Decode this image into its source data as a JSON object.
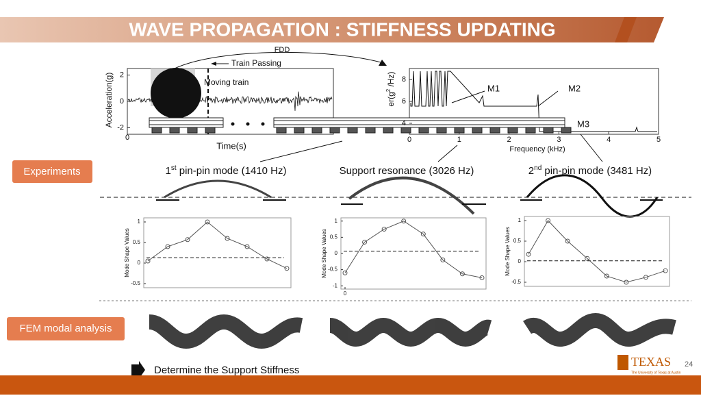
{
  "title": "WAVE PROPAGATION : STIFFNESS UPDATING",
  "fdd_label": "FDD",
  "signal_plot": {
    "ylabel": "Acceleration(g)",
    "xlabel": "Time(s)",
    "yticks": [
      -2,
      0,
      2
    ],
    "ylim": [
      -2.5,
      2.5
    ],
    "xticks": [
      0
    ],
    "train_passing": "Train Passing",
    "moving_train": "Moving train"
  },
  "spectrum_plot": {
    "ylabel_parts": [
      "er(g",
      "2",
      " /Hz)"
    ],
    "xlabel": "Frequency (kHz)",
    "yticks": [
      4,
      6,
      8
    ],
    "ylim": [
      3,
      9
    ],
    "xticks": [
      0,
      1,
      2,
      3,
      4,
      5
    ],
    "xlim": [
      0,
      5
    ],
    "peaks": [
      "M1",
      "M2",
      "M3"
    ]
  },
  "experiments_label": "Experiments",
  "fem_label": "FEM modal analysis",
  "modes": [
    {
      "ordinal": "1",
      "suffix": "st",
      "name": " pin-pin mode (1410 Hz)",
      "ylabel": "Mode Shape Values",
      "yticks": [
        -0.5,
        0,
        0.5,
        1
      ],
      "ylim": [
        -0.6,
        1.1
      ],
      "values": [
        0.05,
        0.4,
        0.57,
        1,
        0.6,
        0.4,
        0.1,
        -0.13
      ],
      "dashed_level": 0.13
    },
    {
      "ordinal": "",
      "suffix": "",
      "name": "Support resonance (3026 Hz)",
      "ylabel": "Mode Shape Values",
      "yticks": [
        -1,
        -0.5,
        0,
        0.5,
        1
      ],
      "ylim": [
        -1.1,
        1.1
      ],
      "xticks": [
        0
      ],
      "values": [
        -0.6,
        0.35,
        0.75,
        1,
        0.6,
        -0.2,
        -0.63,
        -0.75
      ],
      "dashed_level": 0.07
    },
    {
      "ordinal": "2",
      "suffix": "nd",
      "name": "  pin-pin mode (3481 Hz)",
      "ylabel": "Mode Shape Values",
      "yticks": [
        -0.5,
        0,
        0.5,
        1
      ],
      "ylim": [
        -0.6,
        1.1
      ],
      "values": [
        0.18,
        1,
        0.5,
        0.08,
        -0.35,
        -0.5,
        -0.38,
        -0.22
      ],
      "dashed_level": 0.02
    }
  ],
  "conclusion": "Determine the Support Stiffness",
  "logo": {
    "name": "TEXAS",
    "subtitle": "The University of Texas at Austin"
  },
  "page_number": "24"
}
